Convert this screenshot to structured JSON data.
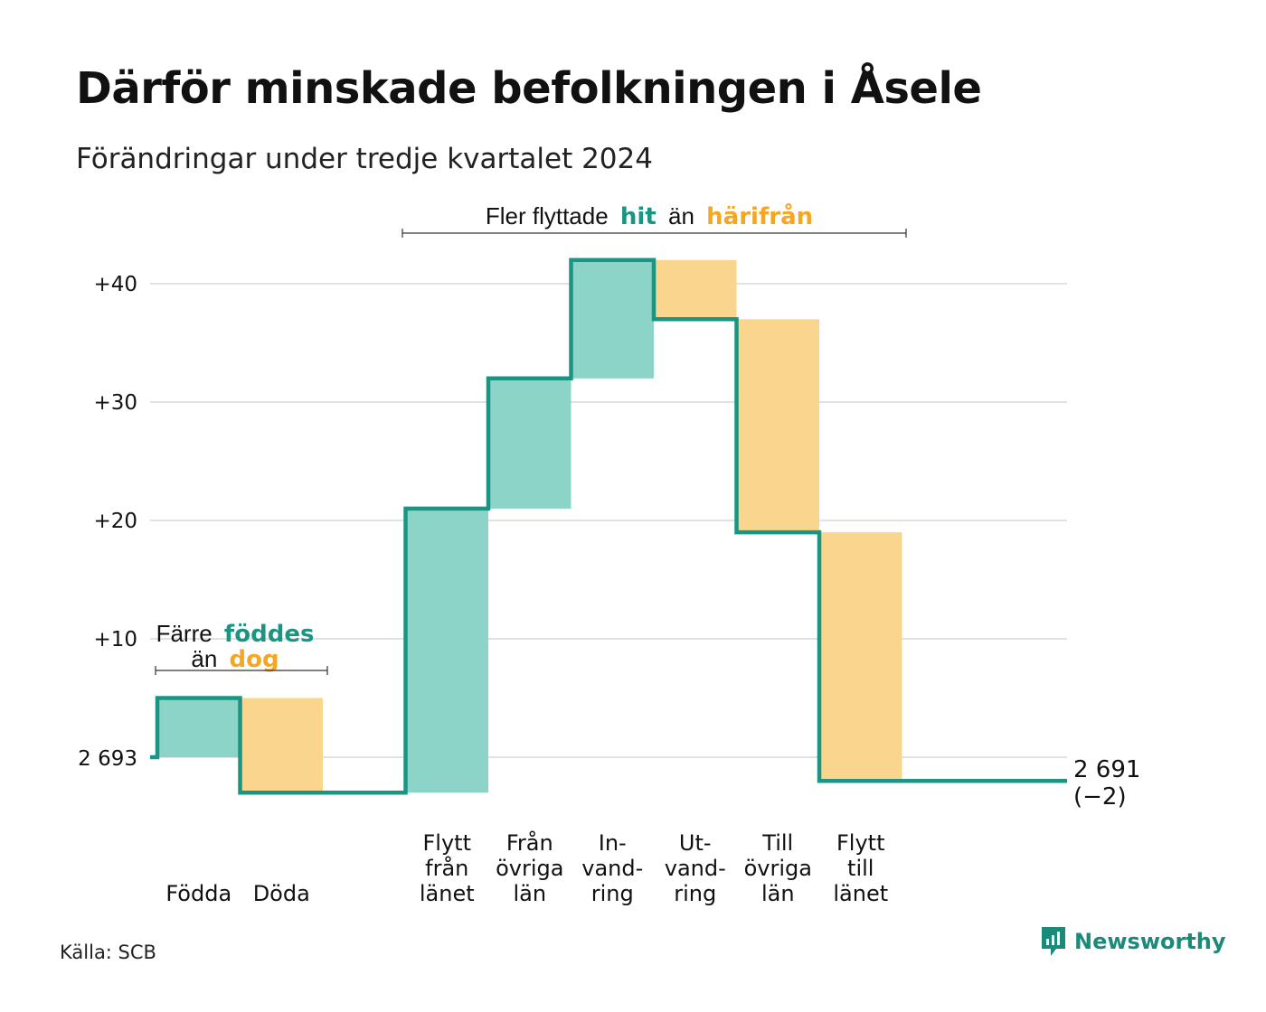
{
  "title": "Därför minskade befolkningen i Åsele",
  "subtitle": "Förändringar under tredje kvartalet 2024",
  "source": "Källa: SCB",
  "brand": "Newsworthy",
  "colors": {
    "increase_fill": "#8dd4c8",
    "decrease_fill": "#f9d58d",
    "line": "#1b9583",
    "grid": "#e2e2e2",
    "accent_teal": "#1b9583",
    "accent_orange": "#f5a623"
  },
  "annotations": {
    "births": {
      "line1_prefix": "Färre",
      "line1_em": "föddes",
      "line2_prefix": "än",
      "line2_em": "dog"
    },
    "migration": {
      "prefix": "Fler flyttade",
      "em1": "hit",
      "middle": "än",
      "em2": "härifrån"
    }
  },
  "chart_data": {
    "type": "waterfall",
    "start_label": "2 693",
    "end_label": "2 691",
    "end_change_label": "(−2)",
    "y_ticks": [
      {
        "value": 10,
        "label": "+10"
      },
      {
        "value": 20,
        "label": "+20"
      },
      {
        "value": 30,
        "label": "+30"
      },
      {
        "value": 40,
        "label": "+40"
      }
    ],
    "ylim": [
      -4,
      44
    ],
    "categories": [
      {
        "label": [
          "Födda"
        ],
        "delta": 5,
        "slot": 0
      },
      {
        "label": [
          "Döda"
        ],
        "delta": -8,
        "slot": 1
      },
      {
        "label": [
          "Flytt",
          "från",
          "länet"
        ],
        "delta": 24,
        "slot": 3
      },
      {
        "label": [
          "Från",
          "övriga",
          "län"
        ],
        "delta": 11,
        "slot": 4
      },
      {
        "label": [
          "In-",
          "vand-",
          "ring"
        ],
        "delta": 10,
        "slot": 5
      },
      {
        "label": [
          "Ut-",
          "vand-",
          "ring"
        ],
        "delta": -5,
        "slot": 6
      },
      {
        "label": [
          "Till",
          "övriga",
          "län"
        ],
        "delta": -18,
        "slot": 7
      },
      {
        "label": [
          "Flytt",
          "till",
          "länet"
        ],
        "delta": -21,
        "slot": 8
      }
    ],
    "total_change": -2
  }
}
